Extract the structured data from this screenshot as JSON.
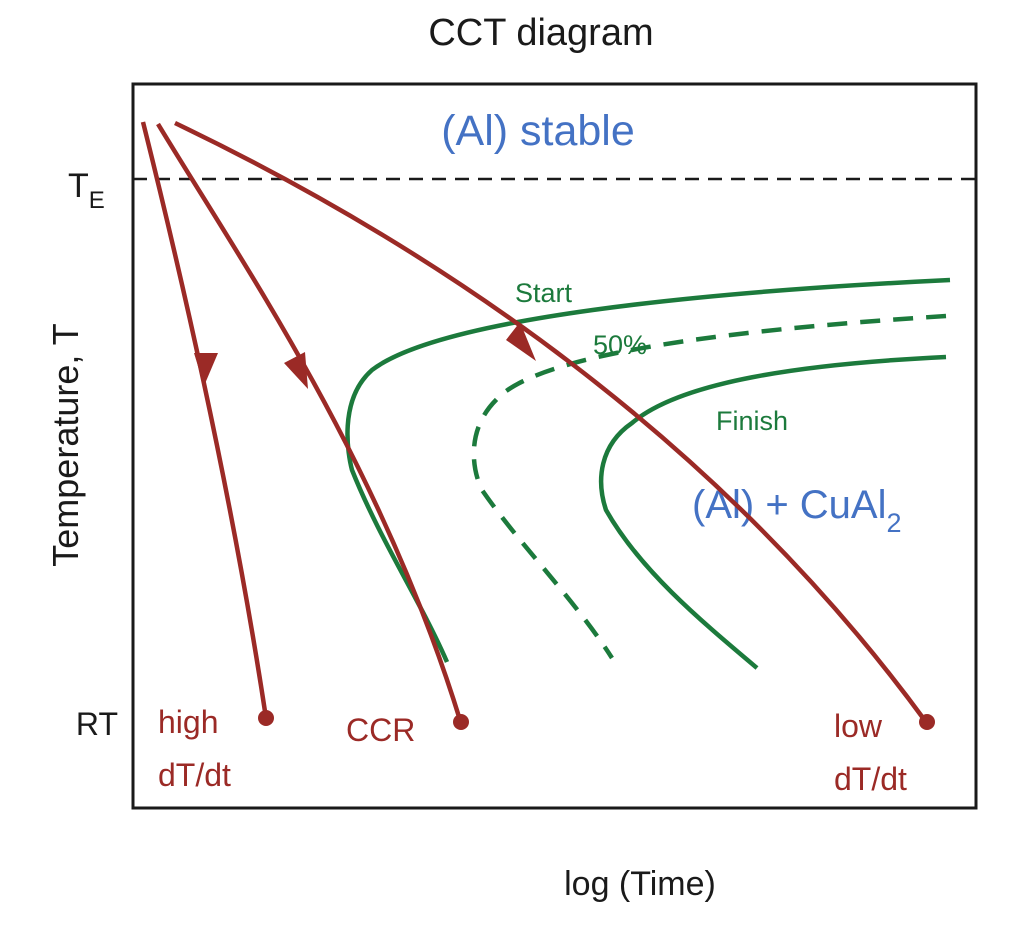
{
  "title": "CCT diagram",
  "y_axis": {
    "label": "Temperature, T",
    "ticks": [
      {
        "main": "T",
        "sub": "E"
      },
      {
        "main": "RT",
        "sub": ""
      }
    ]
  },
  "x_axis": {
    "label": "log (Time)"
  },
  "regions": {
    "stable": "(Al)  stable",
    "mixture_main": "(Al) + CuAl",
    "mixture_sub": "2"
  },
  "transformation_curves": {
    "start": "Start",
    "half": "50%",
    "finish": "Finish"
  },
  "cooling_curves": {
    "high_line1": "high",
    "high_line2": "dT/dt",
    "ccr": "CCR",
    "low_line1": "low",
    "low_line2": "dT/dt"
  },
  "colors": {
    "cooling": "#9b2a26",
    "transformation": "#1c7a3c",
    "region_text": "#4472c4",
    "axis": "#1a1a1a"
  }
}
